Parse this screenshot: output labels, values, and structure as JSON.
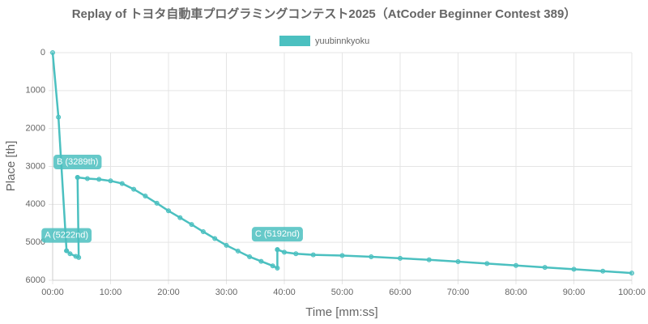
{
  "chart_data": {
    "type": "line",
    "title": "Replay of トヨタ自動車プログラミングコンテスト2025（AtCoder Beginner Contest 389）",
    "x_label": "Time [mm:ss]",
    "y_label": "Place [th]",
    "x": [
      0,
      1.0,
      2.4,
      3.0,
      4.0,
      4.5,
      4.3,
      6,
      8,
      10,
      12,
      14,
      16,
      18,
      20,
      22,
      24,
      26,
      28,
      30,
      32,
      34,
      36,
      38,
      38.8,
      38.8,
      40,
      42,
      45,
      50,
      55,
      60,
      65,
      70,
      75,
      80,
      85,
      90,
      95,
      100
    ],
    "series": [
      {
        "name": "yuubinnkyoku",
        "color": "#4bc0c0",
        "values": [
          0,
          1700,
          5222,
          5300,
          5370,
          5400,
          3289,
          3320,
          3340,
          3380,
          3450,
          3600,
          3780,
          3970,
          4170,
          4350,
          4530,
          4720,
          4900,
          5080,
          5230,
          5380,
          5500,
          5620,
          5680,
          5192,
          5260,
          5300,
          5330,
          5350,
          5380,
          5420,
          5460,
          5510,
          5560,
          5610,
          5660,
          5710,
          5760,
          5810
        ]
      }
    ],
    "annotations": [
      {
        "label": "A (5222nd)",
        "x": 2.4,
        "y": 5222
      },
      {
        "label": "B (3289th)",
        "x": 4.3,
        "y": 3289
      },
      {
        "label": "C (5192nd)",
        "x": 38.8,
        "y": 5192
      }
    ],
    "xlim": [
      0,
      100
    ],
    "xticks": [
      {
        "value": 0,
        "label": "00:00"
      },
      {
        "value": 10,
        "label": "10:00"
      },
      {
        "value": 20,
        "label": "20:00"
      },
      {
        "value": 30,
        "label": "30:00"
      },
      {
        "value": 40,
        "label": "40:00"
      },
      {
        "value": 50,
        "label": "50:00"
      },
      {
        "value": 60,
        "label": "60:00"
      },
      {
        "value": 70,
        "label": "70:00"
      },
      {
        "value": 80,
        "label": "80:00"
      },
      {
        "value": 90,
        "label": "90:00"
      },
      {
        "value": 100,
        "label": "100:00"
      }
    ],
    "ylim": [
      6000,
      0
    ],
    "yticks": [
      0,
      1000,
      2000,
      3000,
      4000,
      5000,
      6000
    ],
    "grid": true
  }
}
